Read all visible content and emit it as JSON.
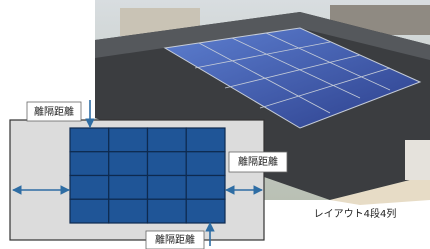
{
  "labels": {
    "top": "離隔距離",
    "right": "離隔距離",
    "bottom": "離隔距離"
  },
  "caption": "レイアウト4段4列"
}
